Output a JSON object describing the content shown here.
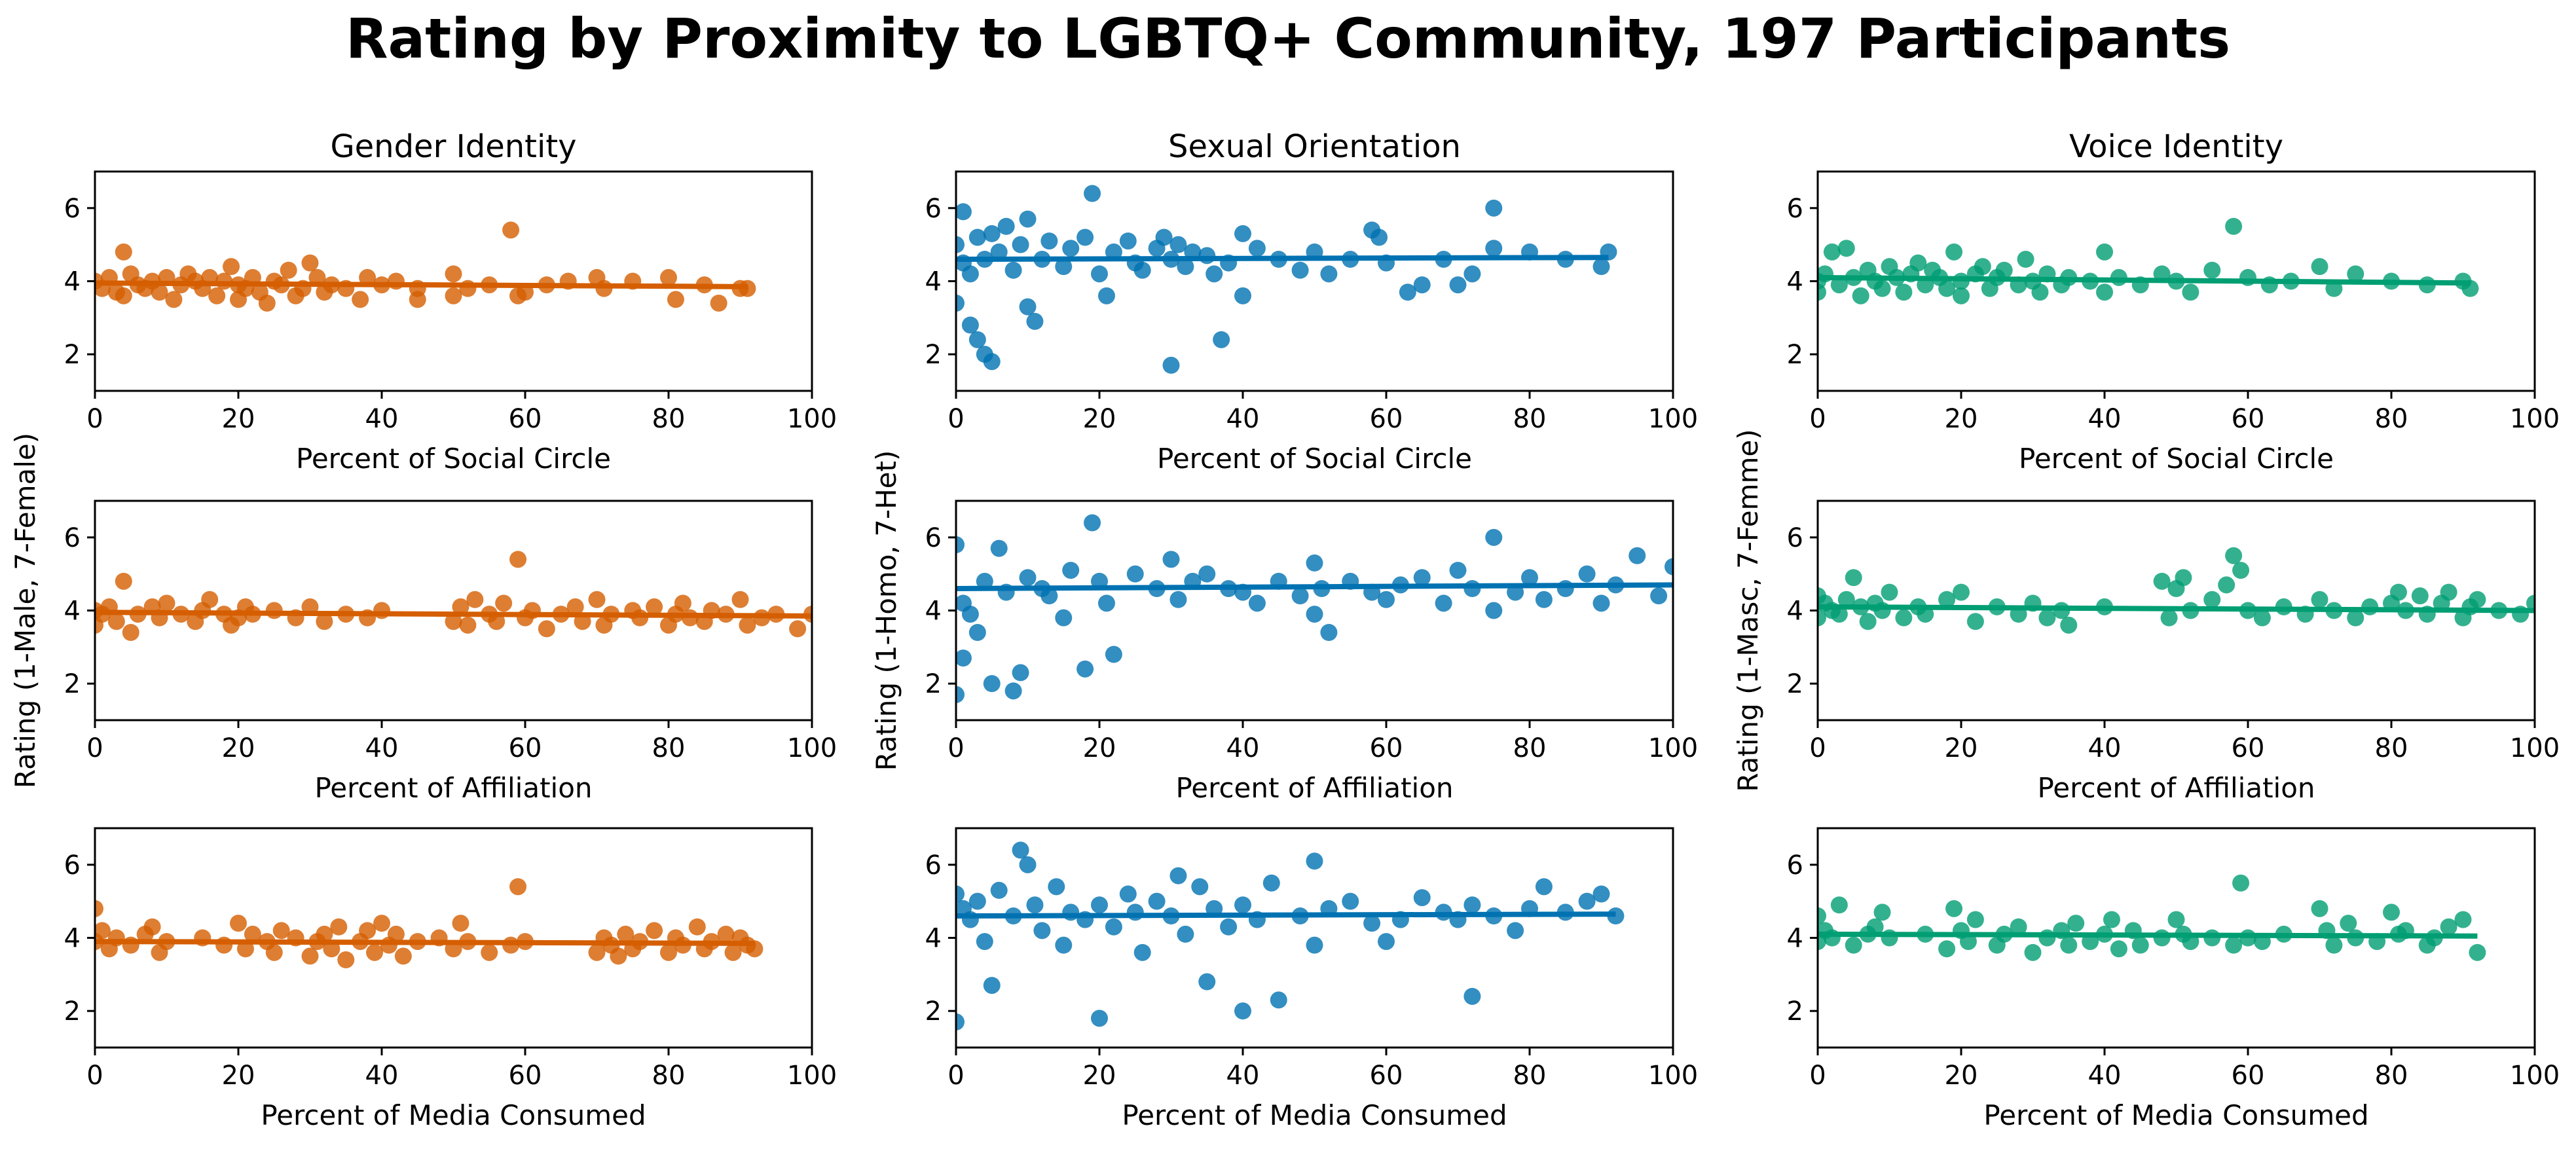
{
  "title": "Rating by Proximity to LGBTQ+ Community, 197 Participants",
  "columns": [
    {
      "id": "gender",
      "title": "Gender Identity",
      "ylabel": "Rating (1-Male, 7-Female)",
      "color": "#d55e00"
    },
    {
      "id": "sexual",
      "title": "Sexual Orientation",
      "ylabel": "Rating (1-Homo, 7-Het)",
      "color": "#0072b2"
    },
    {
      "id": "voice",
      "title": "Voice Identity",
      "ylabel": "Rating (1-Masc, 7-Femme)",
      "color": "#009e73"
    }
  ],
  "rows": [
    {
      "xlabel": "Percent of Social Circle"
    },
    {
      "xlabel": "Percent of Affiliation"
    },
    {
      "xlabel": "Percent of Media Consumed"
    }
  ],
  "x_ticks": [
    0,
    20,
    40,
    60,
    80,
    100
  ],
  "y_ticks": [
    2,
    4,
    6
  ],
  "chart_data": [
    {
      "type": "scatter",
      "panel": "gender-social",
      "xlabel": "Percent of Social Circle",
      "ylabel": "Rating (1-Male, 7-Female)",
      "title": "Gender Identity",
      "xlim": [
        0,
        100
      ],
      "ylim": [
        1,
        7
      ],
      "x": [
        0,
        1,
        2,
        3,
        4,
        4,
        5,
        6,
        7,
        8,
        9,
        10,
        11,
        12,
        13,
        14,
        15,
        16,
        17,
        18,
        19,
        20,
        20,
        21,
        22,
        23,
        24,
        25,
        26,
        27,
        28,
        29,
        30,
        31,
        32,
        33,
        35,
        37,
        38,
        40,
        42,
        45,
        45,
        50,
        50,
        52,
        55,
        58,
        59,
        60,
        63,
        66,
        70,
        71,
        75,
        80,
        81,
        85,
        87,
        90,
        91
      ],
      "y": [
        4.0,
        3.8,
        4.1,
        3.7,
        4.8,
        3.6,
        4.2,
        3.9,
        3.8,
        4.0,
        3.7,
        4.1,
        3.5,
        3.9,
        4.2,
        4.0,
        3.8,
        4.1,
        3.6,
        4.0,
        4.4,
        3.9,
        3.5,
        3.8,
        4.1,
        3.7,
        3.4,
        4.0,
        3.9,
        4.3,
        3.6,
        3.8,
        4.5,
        4.1,
        3.7,
        3.9,
        3.8,
        3.5,
        4.1,
        3.9,
        4.0,
        3.5,
        3.8,
        4.2,
        3.6,
        3.8,
        3.9,
        5.4,
        3.6,
        3.7,
        3.9,
        4.0,
        4.1,
        3.8,
        4.0,
        4.1,
        3.5,
        3.9,
        3.4,
        3.8,
        3.8
      ],
      "fit": {
        "x": [
          0,
          91
        ],
        "y": [
          3.95,
          3.85
        ]
      }
    },
    {
      "type": "scatter",
      "panel": "sexual-social",
      "xlabel": "Percent of Social Circle",
      "ylabel": "Rating (1-Homo, 7-Het)",
      "title": "Sexual Orientation",
      "xlim": [
        0,
        100
      ],
      "ylim": [
        1,
        7
      ],
      "x": [
        0,
        0,
        1,
        1,
        2,
        2,
        3,
        3,
        4,
        4,
        5,
        5,
        6,
        7,
        8,
        9,
        10,
        10,
        11,
        12,
        13,
        15,
        16,
        18,
        19,
        20,
        21,
        22,
        24,
        25,
        26,
        28,
        29,
        30,
        30,
        31,
        32,
        33,
        35,
        36,
        37,
        38,
        40,
        40,
        42,
        45,
        48,
        50,
        52,
        55,
        58,
        59,
        60,
        63,
        65,
        68,
        70,
        72,
        75,
        75,
        80,
        85,
        90,
        91
      ],
      "y": [
        5.0,
        3.4,
        5.9,
        4.5,
        4.2,
        2.8,
        5.2,
        2.4,
        2.0,
        4.6,
        1.8,
        5.3,
        4.8,
        5.5,
        4.3,
        5.0,
        3.3,
        5.7,
        2.9,
        4.6,
        5.1,
        4.4,
        4.9,
        5.2,
        6.4,
        4.2,
        3.6,
        4.8,
        5.1,
        4.5,
        4.3,
        4.9,
        5.2,
        1.7,
        4.6,
        5.0,
        4.4,
        4.8,
        4.7,
        4.2,
        2.4,
        4.5,
        5.3,
        3.6,
        4.9,
        4.6,
        4.3,
        4.8,
        4.2,
        4.6,
        5.4,
        5.2,
        4.5,
        3.7,
        3.9,
        4.6,
        3.9,
        4.2,
        6.0,
        4.9,
        4.8,
        4.6,
        4.4,
        4.8
      ],
      "fit": {
        "x": [
          0,
          91
        ],
        "y": [
          4.6,
          4.65
        ]
      }
    },
    {
      "type": "scatter",
      "panel": "voice-social",
      "xlabel": "Percent of Social Circle",
      "ylabel": "Rating (1-Masc, 7-Femme)",
      "title": "Voice Identity",
      "xlim": [
        0,
        100
      ],
      "ylim": [
        1,
        7
      ],
      "x": [
        0,
        0,
        1,
        2,
        3,
        4,
        5,
        6,
        7,
        8,
        9,
        10,
        11,
        12,
        13,
        14,
        15,
        16,
        17,
        18,
        19,
        20,
        20,
        22,
        23,
        24,
        25,
        26,
        28,
        29,
        30,
        31,
        32,
        34,
        35,
        38,
        40,
        40,
        42,
        45,
        48,
        50,
        52,
        55,
        58,
        60,
        63,
        66,
        70,
        72,
        75,
        80,
        85,
        90,
        91
      ],
      "y": [
        4.0,
        3.7,
        4.2,
        4.8,
        3.9,
        4.9,
        4.1,
        3.6,
        4.3,
        4.0,
        3.8,
        4.4,
        4.1,
        3.7,
        4.2,
        4.5,
        3.9,
        4.3,
        4.1,
        3.8,
        4.8,
        4.0,
        3.6,
        4.2,
        4.4,
        3.8,
        4.1,
        4.3,
        3.9,
        4.6,
        4.0,
        3.7,
        4.2,
        3.9,
        4.1,
        4.0,
        4.8,
        3.7,
        4.1,
        3.9,
        4.2,
        4.0,
        3.7,
        4.3,
        5.5,
        4.1,
        3.9,
        4.0,
        4.4,
        3.8,
        4.2,
        4.0,
        3.9,
        4.0,
        3.8
      ],
      "fit": {
        "x": [
          0,
          91
        ],
        "y": [
          4.1,
          3.95
        ]
      }
    },
    {
      "type": "scatter",
      "panel": "gender-affiliation",
      "xlabel": "Percent of Affiliation",
      "ylabel": "Rating (1-Male, 7-Female)",
      "title": "",
      "xlim": [
        0,
        100
      ],
      "ylim": [
        1,
        7
      ],
      "x": [
        0,
        0,
        1,
        2,
        3,
        4,
        5,
        6,
        8,
        9,
        10,
        12,
        14,
        15,
        16,
        18,
        19,
        20,
        21,
        22,
        25,
        28,
        30,
        32,
        35,
        38,
        40,
        50,
        51,
        52,
        53,
        55,
        56,
        57,
        59,
        60,
        61,
        63,
        65,
        67,
        68,
        70,
        71,
        72,
        75,
        76,
        78,
        80,
        81,
        82,
        83,
        85,
        86,
        88,
        90,
        91,
        93,
        95,
        98,
        100
      ],
      "y": [
        4.0,
        3.6,
        3.9,
        4.1,
        3.7,
        4.8,
        3.4,
        3.9,
        4.1,
        3.8,
        4.2,
        3.9,
        3.7,
        4.0,
        4.3,
        3.9,
        3.6,
        3.8,
        4.1,
        3.9,
        4.0,
        3.8,
        4.1,
        3.7,
        3.9,
        3.8,
        4.0,
        3.7,
        4.1,
        3.6,
        4.3,
        3.9,
        3.7,
        4.2,
        5.4,
        3.8,
        4.0,
        3.5,
        3.9,
        4.1,
        3.7,
        4.3,
        3.6,
        3.9,
        4.0,
        3.8,
        4.1,
        3.6,
        3.9,
        4.2,
        3.8,
        3.7,
        4.0,
        3.9,
        4.3,
        3.6,
        3.8,
        3.9,
        3.5,
        3.9
      ],
      "fit": {
        "x": [
          0,
          100
        ],
        "y": [
          3.95,
          3.85
        ]
      }
    },
    {
      "type": "scatter",
      "panel": "sexual-affiliation",
      "xlabel": "Percent of Affiliation",
      "ylabel": "Rating (1-Homo, 7-Het)",
      "title": "",
      "xlim": [
        0,
        100
      ],
      "ylim": [
        1,
        7
      ],
      "x": [
        0,
        0,
        1,
        1,
        2,
        3,
        4,
        5,
        6,
        7,
        8,
        9,
        10,
        12,
        13,
        15,
        16,
        18,
        19,
        20,
        21,
        22,
        25,
        28,
        30,
        31,
        33,
        35,
        38,
        40,
        42,
        45,
        48,
        50,
        50,
        51,
        52,
        55,
        58,
        60,
        62,
        65,
        68,
        70,
        72,
        75,
        75,
        78,
        80,
        82,
        85,
        88,
        90,
        92,
        95,
        98,
        100
      ],
      "y": [
        5.8,
        1.7,
        4.2,
        2.7,
        3.9,
        3.4,
        4.8,
        2.0,
        5.7,
        4.5,
        1.8,
        2.3,
        4.9,
        4.6,
        4.4,
        3.8,
        5.1,
        2.4,
        6.4,
        4.8,
        4.2,
        2.8,
        5.0,
        4.6,
        5.4,
        4.3,
        4.8,
        5.0,
        4.6,
        4.5,
        4.2,
        4.8,
        4.4,
        5.3,
        3.9,
        4.6,
        3.4,
        4.8,
        4.5,
        4.3,
        4.7,
        4.9,
        4.2,
        5.1,
        4.6,
        6.0,
        4.0,
        4.5,
        4.9,
        4.3,
        4.6,
        5.0,
        4.2,
        4.7,
        5.5,
        4.4,
        5.2
      ],
      "fit": {
        "x": [
          0,
          100
        ],
        "y": [
          4.6,
          4.7
        ]
      }
    },
    {
      "type": "scatter",
      "panel": "voice-affiliation",
      "xlabel": "Percent of Affiliation",
      "ylabel": "Rating (1-Masc, 7-Femme)",
      "title": "",
      "xlim": [
        0,
        100
      ],
      "ylim": [
        1,
        7
      ],
      "x": [
        0,
        0,
        1,
        2,
        3,
        4,
        5,
        6,
        7,
        8,
        9,
        10,
        12,
        14,
        15,
        18,
        20,
        22,
        25,
        28,
        30,
        32,
        34,
        35,
        40,
        48,
        49,
        50,
        51,
        52,
        55,
        57,
        58,
        59,
        60,
        62,
        65,
        68,
        70,
        72,
        75,
        77,
        80,
        81,
        82,
        84,
        85,
        87,
        88,
        90,
        91,
        92,
        95,
        98,
        100
      ],
      "y": [
        4.4,
        3.8,
        4.2,
        4.0,
        3.9,
        4.3,
        4.9,
        4.1,
        3.7,
        4.2,
        4.0,
        4.5,
        3.8,
        4.1,
        3.9,
        4.3,
        4.5,
        3.7,
        4.1,
        3.9,
        4.2,
        3.8,
        4.0,
        3.6,
        4.1,
        4.8,
        3.8,
        4.6,
        4.9,
        4.0,
        4.3,
        4.7,
        5.5,
        5.1,
        4.0,
        3.8,
        4.1,
        3.9,
        4.3,
        4.0,
        3.8,
        4.1,
        4.2,
        4.5,
        4.0,
        4.4,
        3.9,
        4.2,
        4.5,
        3.8,
        4.1,
        4.3,
        4.0,
        3.9,
        4.2
      ],
      "fit": {
        "x": [
          0,
          100
        ],
        "y": [
          4.1,
          4.0
        ]
      }
    },
    {
      "type": "scatter",
      "panel": "gender-media",
      "xlabel": "Percent of Media Consumed",
      "ylabel": "Rating (1-Male, 7-Female)",
      "title": "",
      "xlim": [
        0,
        100
      ],
      "ylim": [
        1,
        7
      ],
      "x": [
        0,
        0,
        1,
        2,
        3,
        5,
        7,
        8,
        9,
        10,
        15,
        18,
        20,
        21,
        22,
        24,
        25,
        26,
        28,
        30,
        31,
        32,
        33,
        34,
        35,
        37,
        38,
        39,
        40,
        41,
        42,
        43,
        45,
        48,
        50,
        51,
        52,
        55,
        58,
        59,
        60,
        70,
        71,
        72,
        73,
        74,
        75,
        76,
        78,
        80,
        81,
        82,
        84,
        85,
        86,
        88,
        89,
        90,
        91,
        92
      ],
      "y": [
        4.8,
        3.9,
        4.2,
        3.7,
        4.0,
        3.8,
        4.1,
        4.3,
        3.6,
        3.9,
        4.0,
        3.8,
        4.4,
        3.7,
        4.1,
        3.9,
        3.6,
        4.2,
        4.0,
        3.5,
        3.9,
        4.1,
        3.7,
        4.3,
        3.4,
        3.9,
        4.2,
        3.6,
        4.4,
        3.8,
        4.1,
        3.5,
        3.9,
        4.0,
        3.7,
        4.4,
        3.9,
        3.6,
        3.8,
        5.4,
        3.9,
        3.6,
        4.0,
        3.8,
        3.5,
        4.1,
        3.7,
        3.9,
        4.2,
        3.6,
        4.0,
        3.8,
        4.3,
        3.7,
        3.9,
        4.1,
        3.6,
        4.0,
        3.8,
        3.7
      ],
      "fit": {
        "x": [
          0,
          92
        ],
        "y": [
          3.9,
          3.85
        ]
      }
    },
    {
      "type": "scatter",
      "panel": "sexual-media",
      "xlabel": "Percent of Media Consumed",
      "ylabel": "Rating (1-Homo, 7-Het)",
      "title": "",
      "xlim": [
        0,
        100
      ],
      "ylim": [
        1,
        7
      ],
      "x": [
        0,
        0,
        1,
        2,
        3,
        4,
        5,
        6,
        8,
        9,
        10,
        11,
        12,
        14,
        15,
        16,
        18,
        20,
        20,
        22,
        24,
        25,
        26,
        28,
        30,
        31,
        32,
        34,
        35,
        36,
        38,
        40,
        40,
        42,
        44,
        45,
        48,
        50,
        50,
        52,
        55,
        58,
        60,
        62,
        65,
        68,
        70,
        72,
        72,
        75,
        78,
        80,
        82,
        85,
        88,
        90,
        92
      ],
      "y": [
        5.2,
        1.7,
        4.8,
        4.5,
        5.0,
        3.9,
        2.7,
        5.3,
        4.6,
        6.4,
        6.0,
        4.9,
        4.2,
        5.4,
        3.8,
        4.7,
        4.5,
        1.8,
        4.9,
        4.3,
        5.2,
        4.7,
        3.6,
        5.0,
        4.6,
        5.7,
        4.1,
        5.4,
        2.8,
        4.8,
        4.3,
        4.9,
        2.0,
        4.5,
        5.5,
        2.3,
        4.6,
        6.1,
        3.8,
        4.8,
        5.0,
        4.4,
        3.9,
        4.5,
        5.1,
        4.7,
        4.5,
        4.9,
        2.4,
        4.6,
        4.2,
        4.8,
        5.4,
        4.7,
        5.0,
        5.2,
        4.6
      ],
      "fit": {
        "x": [
          0,
          92
        ],
        "y": [
          4.6,
          4.65
        ]
      }
    },
    {
      "type": "scatter",
      "panel": "voice-media",
      "xlabel": "Percent of Media Consumed",
      "ylabel": "Rating (1-Masc, 7-Femme)",
      "title": "",
      "xlim": [
        0,
        100
      ],
      "ylim": [
        1,
        7
      ],
      "x": [
        0,
        0,
        1,
        2,
        3,
        5,
        7,
        8,
        9,
        10,
        15,
        18,
        19,
        20,
        21,
        22,
        25,
        26,
        28,
        30,
        32,
        34,
        35,
        36,
        38,
        40,
        41,
        42,
        44,
        45,
        48,
        50,
        51,
        52,
        55,
        58,
        59,
        60,
        62,
        65,
        70,
        71,
        72,
        74,
        75,
        78,
        80,
        81,
        82,
        85,
        86,
        88,
        90,
        92
      ],
      "y": [
        4.6,
        3.9,
        4.2,
        4.0,
        4.9,
        3.8,
        4.1,
        4.3,
        4.7,
        4.0,
        4.1,
        3.7,
        4.8,
        4.2,
        3.9,
        4.5,
        3.8,
        4.1,
        4.3,
        3.6,
        4.0,
        4.2,
        3.8,
        4.4,
        3.9,
        4.1,
        4.5,
        3.7,
        4.2,
        3.8,
        4.0,
        4.5,
        4.1,
        3.9,
        4.0,
        3.8,
        5.5,
        4.0,
        3.9,
        4.1,
        4.8,
        4.2,
        3.8,
        4.4,
        4.0,
        3.9,
        4.7,
        4.1,
        4.2,
        3.8,
        4.0,
        4.3,
        4.5,
        3.6
      ],
      "fit": {
        "x": [
          0,
          92
        ],
        "y": [
          4.1,
          4.05
        ]
      }
    }
  ]
}
